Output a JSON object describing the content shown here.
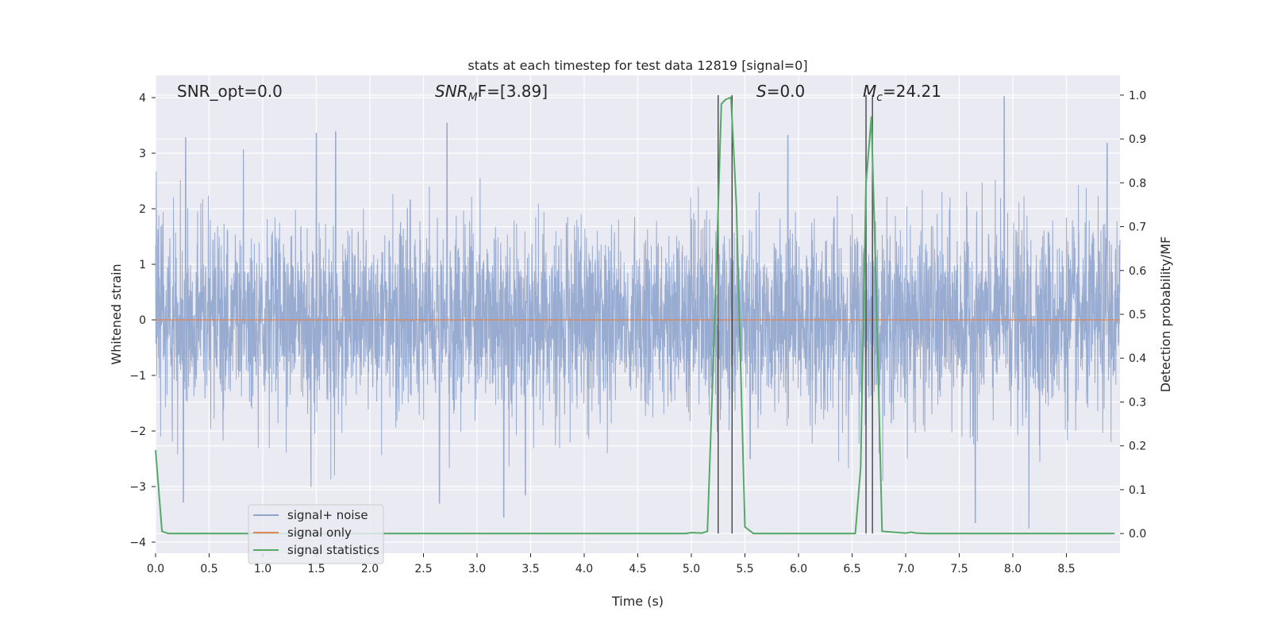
{
  "chart_data": {
    "type": "line",
    "title": "stats at each timestep for test data 12819 [signal=0]",
    "xlabel": "Time (s)",
    "ylabel_left": "Whitened strain",
    "ylabel_right": "Detection probability/MF",
    "xlim": [
      0.0,
      9.0
    ],
    "ylim_left": [
      -4.2,
      4.4
    ],
    "ylim_right": [
      -0.045,
      1.045
    ],
    "x_ticks": [
      "0.0",
      "0.5",
      "1.0",
      "1.5",
      "2.0",
      "2.5",
      "3.0",
      "3.5",
      "4.0",
      "4.5",
      "5.0",
      "5.5",
      "6.0",
      "6.5",
      "7.0",
      "7.5",
      "8.0",
      "8.5"
    ],
    "y_left_ticks": [
      "4",
      "3",
      "2",
      "1",
      "0",
      "−1",
      "−2",
      "−3",
      "−4"
    ],
    "y_right_ticks": [
      "1.0",
      "0.9",
      "0.8",
      "0.7",
      "0.6",
      "0.5",
      "0.4",
      "0.3",
      "0.2",
      "0.1",
      "0.0"
    ],
    "grid": true,
    "legend_position": "lower-left",
    "annotations": {
      "snr_opt": "SNR_opt=0.0",
      "snr_mf_prefix": "SNR",
      "snr_mf_sub": "M",
      "snr_mf_suffix": "F=[3.89]",
      "s_prefix": "S",
      "s_suffix": "=0.0",
      "mc_prefix": "M",
      "mc_sub": "c",
      "mc_suffix": "=24.21"
    },
    "series": [
      {
        "name": "signal+ noise",
        "axis": "left",
        "color": "#8fa4cc",
        "style": "dense whitened noise, approx ±2 with peaks to ±3.5",
        "peaks": [
          [
            0.28,
            3.28
          ],
          [
            0.82,
            3.06
          ],
          [
            1.5,
            3.36
          ],
          [
            1.68,
            3.39
          ],
          [
            2.72,
            3.54
          ],
          [
            5.9,
            3.32
          ],
          [
            7.92,
            4.02
          ],
          [
            8.88,
            3.18
          ],
          [
            0.26,
            -3.28
          ],
          [
            1.45,
            -3.0
          ],
          [
            2.65,
            -3.3
          ],
          [
            3.25,
            -3.55
          ],
          [
            3.45,
            -3.15
          ],
          [
            5.55,
            -2.5
          ],
          [
            7.65,
            -3.65
          ],
          [
            8.15,
            -3.75
          ]
        ]
      },
      {
        "name": "signal only",
        "axis": "left",
        "color": "#dd8452",
        "x": [
          0.0,
          9.0
        ],
        "y": [
          0.0,
          0.0
        ]
      },
      {
        "name": "signal statistics",
        "axis": "right",
        "color": "#55a868",
        "x": [
          0.0,
          0.06,
          0.12,
          4.95,
          5.0,
          5.1,
          5.15,
          5.22,
          5.28,
          5.32,
          5.37,
          5.42,
          5.5,
          5.58,
          6.53,
          6.58,
          6.63,
          6.68,
          6.72,
          6.78,
          7.0,
          7.05,
          7.1,
          7.2,
          8.95
        ],
        "y": [
          0.19,
          0.005,
          0.0,
          0.0,
          0.002,
          0.001,
          0.005,
          0.5,
          0.98,
          0.99,
          0.995,
          0.75,
          0.015,
          0.0,
          0.0,
          0.15,
          0.8,
          0.95,
          0.6,
          0.005,
          0.001,
          0.003,
          0.001,
          0.0,
          0.0
        ]
      }
    ],
    "vertical_markers": {
      "color": "#444444",
      "x": [
        5.25,
        5.38,
        6.63,
        6.69
      ],
      "ymin": 0.0,
      "ymax": 1.0
    }
  }
}
